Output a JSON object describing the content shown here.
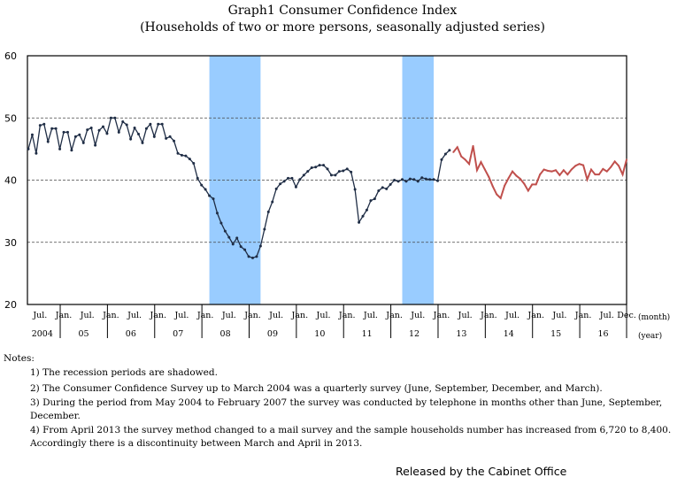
{
  "title": "Graph1     Consumer Confidence Index",
  "subtitle": "(Households of two or more persons, seasonally adjusted series)",
  "chart_data": {
    "type": "line",
    "title": "Graph1     Consumer Confidence Index",
    "subtitle": "(Households of two or more persons, seasonally adjusted series)",
    "ylim": [
      20,
      60
    ],
    "yticks": [
      20,
      30,
      40,
      50,
      60
    ],
    "grid": "horizontal dashed",
    "x_start": "2004-04",
    "x_end": "2016-12",
    "month_unit_label": "(month)",
    "year_unit_label": "(year)",
    "month_labels": [
      "Jul.",
      "Jan.",
      "Dec."
    ],
    "year_labels": [
      "2004",
      "05",
      "06",
      "07",
      "08",
      "09",
      "10",
      "11",
      "12",
      "13",
      "14",
      "15",
      "16"
    ],
    "recessions": [
      {
        "start": "2008-02",
        "end": "2009-03"
      },
      {
        "start": "2012-03",
        "end": "2012-11"
      }
    ],
    "recession_color": "#99ccff",
    "series": [
      {
        "start": "2004-04",
        "color": "#1f2d45",
        "values": [
          45.0,
          47.3,
          44.3,
          48.8,
          49.0,
          46.2,
          48.3,
          48.3,
          45.0,
          47.7,
          47.7,
          44.8,
          47.0,
          47.3,
          46.0,
          48.1,
          48.4,
          45.6,
          48.0,
          48.6,
          47.5,
          50.0,
          50.0,
          47.7,
          49.4,
          48.9,
          46.6,
          48.4,
          47.4,
          46.0,
          48.3,
          49.0,
          47.0,
          49.0,
          49.0,
          46.7,
          47.0,
          46.3,
          44.3,
          44.0,
          43.9,
          43.4,
          42.7,
          40.3,
          39.2,
          38.5,
          37.5,
          37.0,
          34.7,
          33.1,
          31.8,
          30.8,
          29.7,
          30.7,
          29.3,
          28.8,
          27.7,
          27.5,
          27.7,
          29.4,
          32.1,
          34.9,
          36.5,
          38.6,
          39.4,
          39.8,
          40.3,
          40.3,
          38.9,
          40.1,
          40.8,
          41.4,
          42.0,
          42.1,
          42.4,
          42.4,
          41.8,
          40.8,
          40.8,
          41.4,
          41.5,
          41.8,
          41.3,
          38.5,
          33.2,
          34.2,
          35.2,
          36.7,
          37.0,
          38.3,
          38.8,
          38.6,
          39.3,
          40.0,
          39.8,
          40.1,
          39.8,
          40.2,
          40.1,
          39.8,
          40.4,
          40.2,
          40.1,
          40.1,
          39.9,
          43.3,
          44.2,
          44.8
        ]
      },
      {
        "start": "2013-04",
        "color": "#c0504d",
        "values": [
          44.5,
          45.3,
          43.8,
          43.3,
          42.6,
          45.5,
          41.6,
          42.9,
          41.7,
          40.5,
          39.0,
          37.7,
          37.1,
          39.1,
          40.3,
          41.4,
          40.7,
          40.2,
          39.4,
          38.3,
          39.3,
          39.3,
          40.9,
          41.7,
          41.5,
          41.4,
          41.6,
          40.8,
          41.6,
          40.9,
          41.7,
          42.3,
          42.6,
          42.4,
          40.1,
          41.7,
          40.9,
          40.9,
          41.8,
          41.4,
          42.1,
          43.0,
          42.3,
          40.9,
          43.3
        ]
      }
    ]
  },
  "notes": {
    "heading": "Notes:",
    "items": [
      "1) The recession periods are shadowed.",
      "2) The Consumer Confidence Survey up to March 2004 was a quarterly survey  (June, September, December, and March).",
      "3) During the period from May 2004 to February 2007 the survey was conducted by telephone in months other than June, September, December.",
      "4) From April 2013 the survey method changed to a mail survey and the sample households number has increased from 6,720 to 8,400. Accordingly there is a discontinuity between March and April in 2013."
    ]
  },
  "footer": "Released by the Cabinet Office"
}
